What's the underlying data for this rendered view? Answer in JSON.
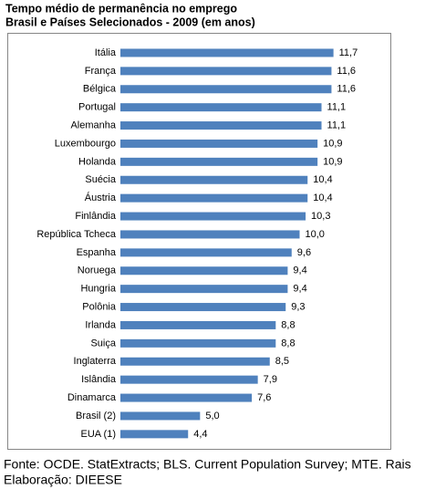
{
  "chart_data": {
    "type": "bar",
    "orientation": "horizontal",
    "title": "Tempo médio de permanência no emprego",
    "subtitle": "Brasil e Países Selecionados - 2009 (em anos)",
    "categories": [
      "Itália",
      "França",
      "Bélgica",
      "Portugal",
      "Alemanha",
      "Luxembourgo",
      "Holanda",
      "Suécia",
      "Áustria",
      "Finlândia",
      "República Tcheca",
      "Espanha",
      "Noruega",
      "Hungria",
      "Polônia",
      "Irlanda",
      "Suiça",
      "Inglaterra",
      "Islândia",
      "Dinamarca",
      "Brasil (2)",
      "EUA (1)"
    ],
    "values": [
      11.7,
      11.6,
      11.6,
      11.1,
      11.1,
      10.9,
      10.9,
      10.4,
      10.4,
      10.3,
      10.0,
      9.6,
      9.4,
      9.4,
      9.3,
      8.8,
      8.8,
      8.5,
      7.9,
      7.6,
      5.0,
      4.4
    ],
    "value_labels": [
      "11,7",
      "11,6",
      "11,6",
      "11,1",
      "11,1",
      "10,9",
      "10,9",
      "10,4",
      "10,4",
      "10,3",
      "10,0",
      "9,6",
      "9,4",
      "9,4",
      "9,3",
      "8,8",
      "8,8",
      "8,5",
      "7,9",
      "7,6",
      "5,0",
      "4,4"
    ],
    "color": "#4f81bd",
    "xlim": [
      1,
      13
    ],
    "notes": [
      "Fonte: OCDE. StatExtracts; BLS. Current Population Survey; MTE. Rais",
      "Elaboração: DIEESE"
    ]
  }
}
